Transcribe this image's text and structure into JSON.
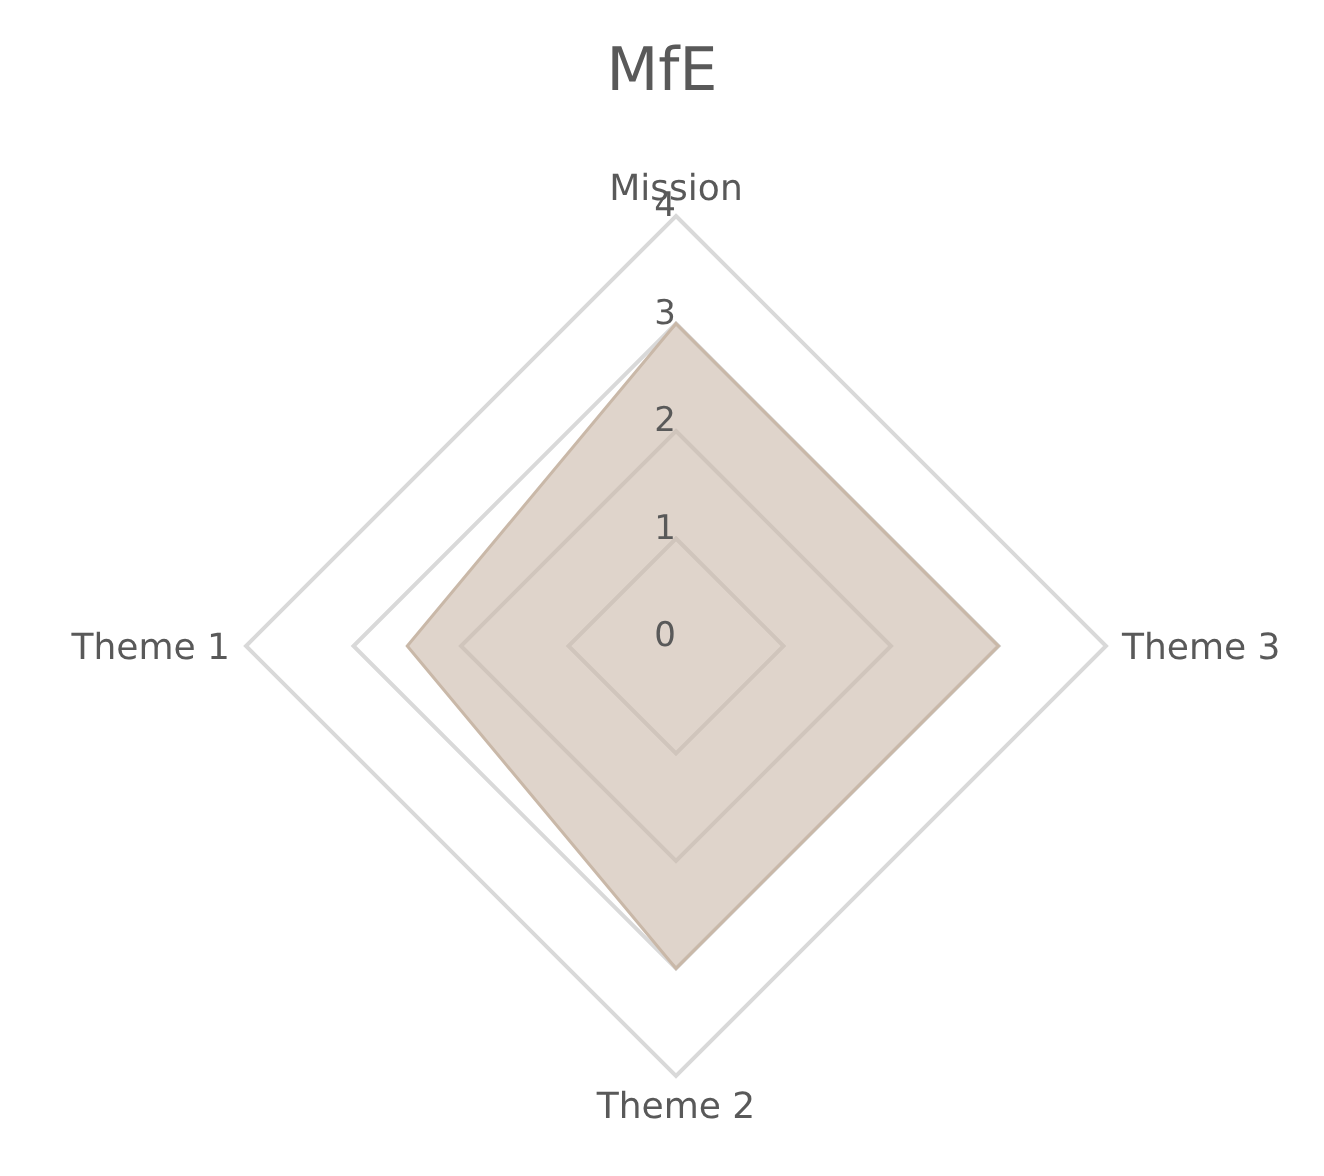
{
  "chart_data": {
    "type": "radar",
    "title": "MfE",
    "categories": [
      "Mission",
      "Theme 3",
      "Theme 2",
      "Theme 1"
    ],
    "series": [
      {
        "color": "#c9b8a8",
        "values": [
          3,
          3,
          3,
          2.5
        ]
      }
    ],
    "ylim": [
      0,
      4
    ],
    "yticks": [
      0,
      1,
      2,
      3,
      4
    ],
    "grid": true
  }
}
